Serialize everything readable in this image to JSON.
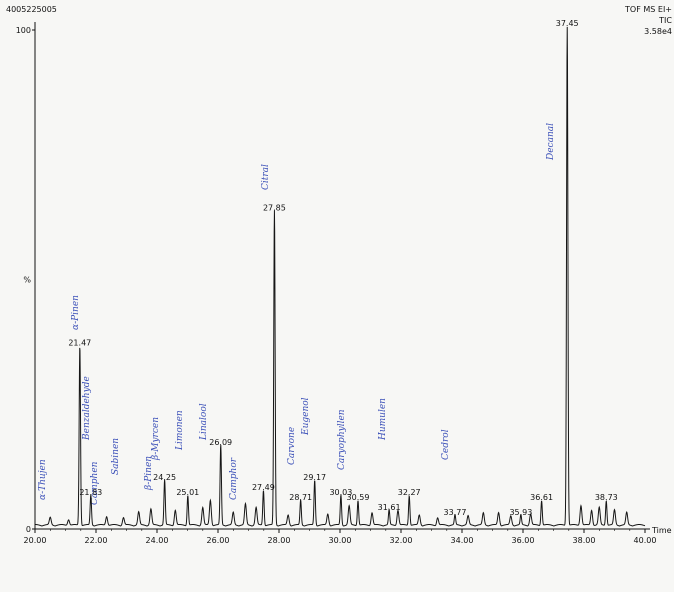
{
  "header": {
    "sample_id": "4005225005",
    "instrument": "TOF MS EI+",
    "trace": "TIC",
    "intensity": "3.58e4"
  },
  "chart_data": {
    "type": "line",
    "xlabel": "Time",
    "ylabel": "%",
    "xlim": [
      20.0,
      40.0
    ],
    "ylim": [
      0,
      100
    ],
    "x_tick_labels": [
      "20.00",
      "22.00",
      "24.00",
      "26.00",
      "28.00",
      "30.00",
      "32.00",
      "34.00",
      "36.00",
      "38.00",
      "40.00"
    ],
    "y_tick_labels": [
      "0",
      "%",
      "100"
    ],
    "peaks": [
      {
        "rt": 21.47,
        "label": "21.47",
        "height": 36
      },
      {
        "rt": 21.83,
        "label": "21.83",
        "height": 6
      },
      {
        "rt": 24.25,
        "label": "24.25",
        "height": 9
      },
      {
        "rt": 25.01,
        "label": "25.01",
        "height": 6
      },
      {
        "rt": 26.09,
        "label": "26.09",
        "height": 16
      },
      {
        "rt": 27.49,
        "label": "27.49",
        "height": 7
      },
      {
        "rt": 27.85,
        "label": "27.85",
        "height": 63
      },
      {
        "rt": 28.71,
        "label": "28.71",
        "height": 5
      },
      {
        "rt": 29.17,
        "label": "29.17",
        "height": 9
      },
      {
        "rt": 30.03,
        "label": "30.03",
        "height": 6
      },
      {
        "rt": 30.59,
        "label": "30.59",
        "height": 5
      },
      {
        "rt": 31.61,
        "label": "31.61",
        "height": 3
      },
      {
        "rt": 32.27,
        "label": "32.27",
        "height": 6
      },
      {
        "rt": 33.77,
        "label": "33.77",
        "height": 2
      },
      {
        "rt": 35.93,
        "label": "35.93",
        "height": 2
      },
      {
        "rt": 36.61,
        "label": "36.61",
        "height": 5
      },
      {
        "rt": 37.45,
        "label": "37.45",
        "height": 100
      },
      {
        "rt": 38.73,
        "label": "38.73",
        "height": 5
      }
    ],
    "minor_peaks": [
      [
        20.5,
        1.5
      ],
      [
        21.1,
        1.2
      ],
      [
        22.35,
        1.8
      ],
      [
        22.9,
        1.5
      ],
      [
        23.4,
        2.6
      ],
      [
        23.8,
        3.2
      ],
      [
        24.6,
        3.0
      ],
      [
        25.5,
        3.5
      ],
      [
        25.75,
        5.0
      ],
      [
        26.5,
        2.5
      ],
      [
        26.9,
        4.2
      ],
      [
        27.25,
        3.5
      ],
      [
        28.3,
        2.0
      ],
      [
        29.6,
        2.2
      ],
      [
        30.3,
        3.8
      ],
      [
        31.05,
        2.5
      ],
      [
        31.9,
        3.0
      ],
      [
        32.6,
        2.0
      ],
      [
        33.2,
        1.5
      ],
      [
        34.2,
        1.8
      ],
      [
        34.7,
        2.4
      ],
      [
        35.2,
        2.5
      ],
      [
        35.6,
        1.8
      ],
      [
        36.25,
        2.2
      ],
      [
        37.9,
        4.0
      ],
      [
        38.25,
        3.0
      ],
      [
        38.5,
        3.5
      ],
      [
        39.0,
        3.0
      ],
      [
        39.4,
        2.5
      ]
    ],
    "annotations": [
      "α-Thujen",
      "α-Pinen",
      "Benzaldehyde",
      "Camphen",
      "Sabinen",
      "β-Pinen",
      "β-Myrcen",
      "Limonen",
      "Linalool",
      "Camphor",
      "Citral",
      "Carvone",
      "Eugenol",
      "Caryophyllen",
      "Humulen",
      "Cedrol",
      "Decanal"
    ]
  }
}
